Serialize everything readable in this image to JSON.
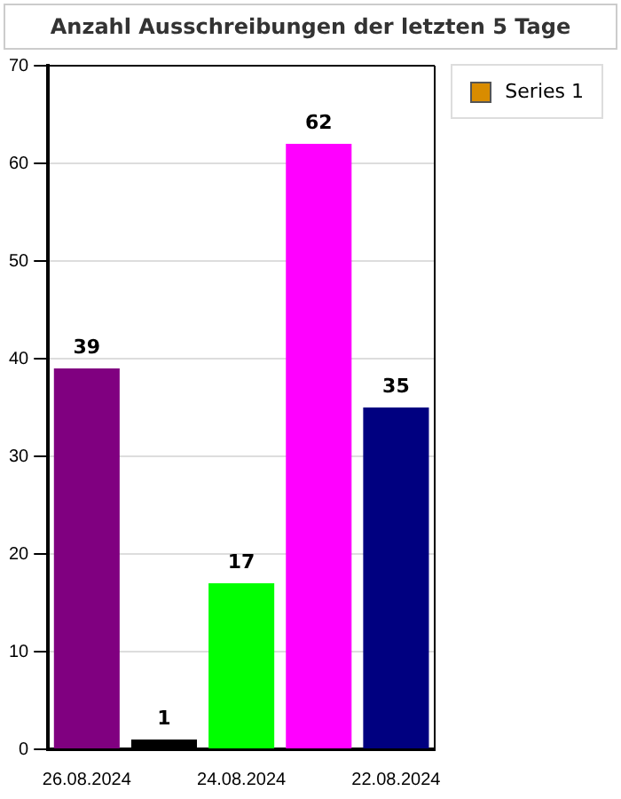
{
  "chart_data": {
    "type": "bar",
    "title": "Anzahl Ausschreibungen der letzten 5 Tage",
    "categories": [
      "26.08.2024",
      null,
      "24.08.2024",
      null,
      "22.08.2024"
    ],
    "series": [
      {
        "name": "Series 1",
        "color": "#d98c00",
        "colors": [
          "#800080",
          "#000000",
          "#00ff00",
          "#ff00ff",
          "#000080"
        ],
        "values": [
          39,
          1,
          17,
          62,
          35
        ]
      }
    ],
    "ylim": [
      0,
      70
    ],
    "yticks": [
      0,
      10,
      20,
      30,
      40,
      50,
      60,
      70
    ],
    "grid": "y",
    "legend": "top right",
    "data_labels": true
  }
}
